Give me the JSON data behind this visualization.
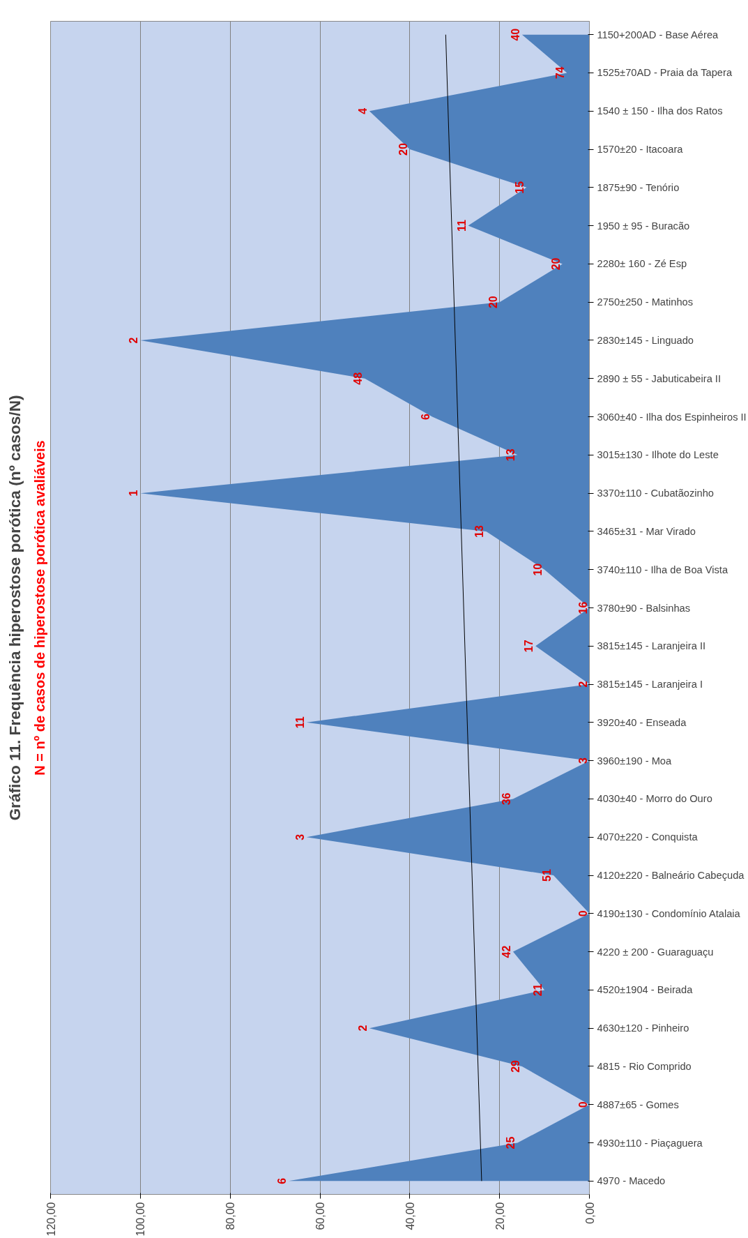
{
  "chart_data": {
    "type": "area",
    "orientation": "horizontal",
    "title": "Gráfico 11. Frequência hiperostose porótica (nº casos/N)",
    "subtitle": "N = nº de casos de hiperostose porótica avaliáveis",
    "categories": [
      "1150+200AD - Base Aérea",
      "1525±70AD - Praia da Tapera",
      "1540 ± 150 - Ilha dos Ratos",
      "1570±20 - Itacoara",
      "1875±90 - Tenório",
      "1950 ± 95 - Buracão",
      "2280± 160 - Zé Esp",
      "2750±250 - Matinhos",
      "2830±145 - Linguado",
      "2890 ± 55 - Jabuticabeira II",
      "3060±40 - Ilha dos Espinheiros II",
      "3015±130 - Ilhote do Leste",
      "3370±110 - Cubatãozinho",
      "3465±31 - Mar Virado",
      "3740±110 - Ilha de Boa Vista",
      "3780±90 - Balsinhas",
      "3815±145 - Laranjeira II",
      "3815±145 - Laranjeira I",
      "3920±40 - Enseada",
      "3960±190 - Moa",
      "4030±40 - Morro do Ouro",
      "4070±220 - Conquista",
      "4120±220 - Balneário Cabeçuda",
      "4190±130 - Condomínio Atalaia",
      "4220 ± 200 - Guaraguaçu",
      "4520±1904 - Beirada",
      "4630±120 - Pinheiro",
      "4815 - Rio Comprido",
      "4887±65 - Gomes",
      "4930±110 - Piaçaguera",
      "4970 - Macedo"
    ],
    "series": [
      {
        "color": "#4f81bd",
        "values": [
          15,
          5,
          49,
          40,
          14,
          27,
          6,
          20,
          100,
          50,
          35,
          16,
          100,
          23,
          10,
          0,
          12,
          0,
          63,
          0,
          17,
          63,
          8,
          0,
          17,
          10,
          49,
          15,
          0,
          16,
          67
        ]
      },
      {
        "type": "line",
        "color": "#000000",
        "x": [
          "4970 - Macedo",
          "1150+200AD - Base Aérea"
        ],
        "values": [
          24,
          32
        ]
      }
    ],
    "xlim": [
      120,
      0
    ],
    "xticks": [
      {
        "value": 0,
        "label": "0,00"
      },
      {
        "value": 20,
        "label": "20,00"
      },
      {
        "value": 40,
        "label": "40,00"
      },
      {
        "value": 60,
        "label": "60,00"
      },
      {
        "value": 80,
        "label": "80,00"
      },
      {
        "value": 100,
        "label": "100,00"
      },
      {
        "value": 120,
        "label": "120,00"
      }
    ],
    "grid": "x",
    "annotations": [
      {
        "text": "40",
        "y": "1150+200AD - Base Aérea",
        "x": 15
      },
      {
        "text": "74",
        "y": "1525±70AD - Praia da Tapera",
        "x": 5
      },
      {
        "text": "4",
        "y": "1540 ± 150 - Ilha dos Ratos",
        "x": 49
      },
      {
        "text": "20",
        "y": "1570±20 - Itacoara",
        "x": 40
      },
      {
        "text": "15",
        "y": "1875±90 - Tenório",
        "x": 14
      },
      {
        "text": "11",
        "y": "1950 ± 95 - Buracão",
        "x": 27
      },
      {
        "text": "20",
        "y": "2280± 160 - Zé Esp",
        "x": 6
      },
      {
        "text": "20",
        "y": "2750±250 - Matinhos",
        "x": 20
      },
      {
        "text": "2",
        "y": "2830±145 - Linguado",
        "x": 100
      },
      {
        "text": "48",
        "y": "2890 ± 55 - Jabuticabeira II",
        "x": 50
      },
      {
        "text": "6",
        "y": "3060±40 - Ilha dos Espinheiros II",
        "x": 35
      },
      {
        "text": "13",
        "y": "3015±130 - Ilhote do Leste",
        "x": 16
      },
      {
        "text": "1",
        "y": "3370±110 - Cubatãozinho",
        "x": 100
      },
      {
        "text": "13",
        "y": "3465±31 - Mar Virado",
        "x": 23
      },
      {
        "text": "10",
        "y": "3740±110 - Ilha de Boa Vista",
        "x": 10
      },
      {
        "text": "16",
        "y": "3780±90 - Balsinhas",
        "x": 0
      },
      {
        "text": "17",
        "y": "3815±145 - Laranjeira II",
        "x": 12
      },
      {
        "text": "2",
        "y": "3815±145 - Laranjeira I",
        "x": 0
      },
      {
        "text": "11",
        "y": "3920±40 - Enseada",
        "x": 63
      },
      {
        "text": "3",
        "y": "3960±190 - Moa",
        "x": 0
      },
      {
        "text": "36",
        "y": "4030±40 - Morro do Ouro",
        "x": 17
      },
      {
        "text": "3",
        "y": "4070±220 - Conquista",
        "x": 63
      },
      {
        "text": "51",
        "y": "4120±220 - Balneário Cabeçuda",
        "x": 8
      },
      {
        "text": "0",
        "y": "4190±130 - Condomínio Atalaia",
        "x": 0
      },
      {
        "text": "42",
        "y": "4220 ± 200 - Guaraguaçu",
        "x": 17
      },
      {
        "text": "21",
        "y": "4520±1904 - Beirada",
        "x": 10
      },
      {
        "text": "2",
        "y": "4630±120 - Pinheiro",
        "x": 49
      },
      {
        "text": "29",
        "y": "4815 - Rio Comprido",
        "x": 15
      },
      {
        "text": "0",
        "y": "4887±65 - Gomes",
        "x": 0
      },
      {
        "text": "25",
        "y": "4930±110 - Piaçaguera",
        "x": 16
      },
      {
        "text": "6",
        "y": "4970 - Macedo",
        "x": 67
      }
    ]
  }
}
